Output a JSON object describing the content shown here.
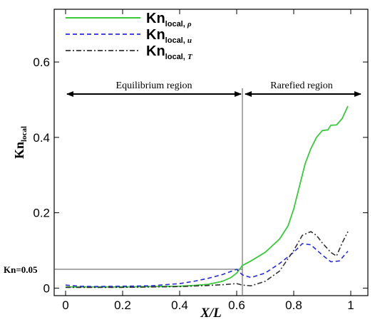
{
  "chart_data": {
    "type": "line",
    "xlabel": "X/L",
    "ylabel": {
      "main": "Kn",
      "sub": "local"
    },
    "xlim": [
      -0.04,
      1.06
    ],
    "ylim": [
      -0.02,
      0.74
    ],
    "x_ticks": [
      {
        "value": 0,
        "label": "0"
      },
      {
        "value": 0.2,
        "label": "0.2"
      },
      {
        "value": 0.4,
        "label": "0.4"
      },
      {
        "value": 0.6,
        "label": "0.6"
      },
      {
        "value": 0.8,
        "label": "0.8"
      },
      {
        "value": 1.0,
        "label": "1"
      }
    ],
    "y_ticks": [
      {
        "value": 0,
        "label": "0"
      },
      {
        "value": 0.2,
        "label": "0.2"
      },
      {
        "value": 0.4,
        "label": "0.4"
      },
      {
        "value": 0.6,
        "label": "0.6"
      }
    ],
    "series": [
      {
        "name": "Kn_local,ρ",
        "legend": {
          "main": "Kn",
          "sub": "local, ",
          "sym": "ρ"
        },
        "color": "#3cc83c",
        "style": "solid",
        "x": [
          0.0,
          0.1,
          0.2,
          0.3,
          0.4,
          0.45,
          0.5,
          0.55,
          0.58,
          0.6,
          0.62,
          0.65,
          0.7,
          0.75,
          0.78,
          0.8,
          0.82,
          0.84,
          0.86,
          0.88,
          0.9,
          0.92,
          0.93,
          0.95,
          0.97,
          0.99
        ],
        "y": [
          0.003,
          0.003,
          0.003,
          0.004,
          0.005,
          0.007,
          0.01,
          0.018,
          0.028,
          0.04,
          0.06,
          0.072,
          0.095,
          0.13,
          0.165,
          0.21,
          0.27,
          0.33,
          0.37,
          0.4,
          0.418,
          0.42,
          0.432,
          0.433,
          0.45,
          0.483
        ]
      },
      {
        "name": "Kn_local,u",
        "legend": {
          "main": "Kn",
          "sub": "local, ",
          "sym": "u"
        },
        "color": "#2a2ad0",
        "style": "dashed",
        "x": [
          0.0,
          0.05,
          0.1,
          0.2,
          0.3,
          0.4,
          0.45,
          0.5,
          0.55,
          0.6,
          0.62,
          0.65,
          0.7,
          0.75,
          0.8,
          0.83,
          0.86,
          0.9,
          0.93,
          0.96,
          0.99
        ],
        "y": [
          0.008,
          0.005,
          0.004,
          0.005,
          0.006,
          0.012,
          0.018,
          0.026,
          0.036,
          0.05,
          0.035,
          0.028,
          0.04,
          0.065,
          0.095,
          0.118,
          0.115,
          0.088,
          0.07,
          0.072,
          0.098
        ]
      },
      {
        "name": "Kn_local,T",
        "legend": {
          "main": "Kn",
          "sub": "local, ",
          "sym": "T"
        },
        "color": "#333333",
        "style": "dashdot",
        "x": [
          0.0,
          0.1,
          0.2,
          0.3,
          0.4,
          0.5,
          0.55,
          0.6,
          0.62,
          0.65,
          0.7,
          0.75,
          0.8,
          0.83,
          0.86,
          0.88,
          0.9,
          0.93,
          0.95,
          0.97,
          0.99
        ],
        "y": [
          0.002,
          0.002,
          0.002,
          0.003,
          0.004,
          0.007,
          0.009,
          0.012,
          0.008,
          0.006,
          0.018,
          0.045,
          0.1,
          0.14,
          0.15,
          0.14,
          0.12,
          0.095,
          0.085,
          0.12,
          0.15
        ]
      }
    ],
    "annotations": {
      "equilibrium_label": "Equilibrium region",
      "equilibrium_range": [
        0.0,
        0.62
      ],
      "rarefied_label": "Rarefied region",
      "rarefied_range": [
        0.62,
        1.06
      ],
      "arrow_y": 0.515,
      "divider_x": 0.62,
      "reference_label": "Kn=0.05",
      "reference_y": 0.05
    },
    "legend_position": "top-left",
    "grid": false
  }
}
